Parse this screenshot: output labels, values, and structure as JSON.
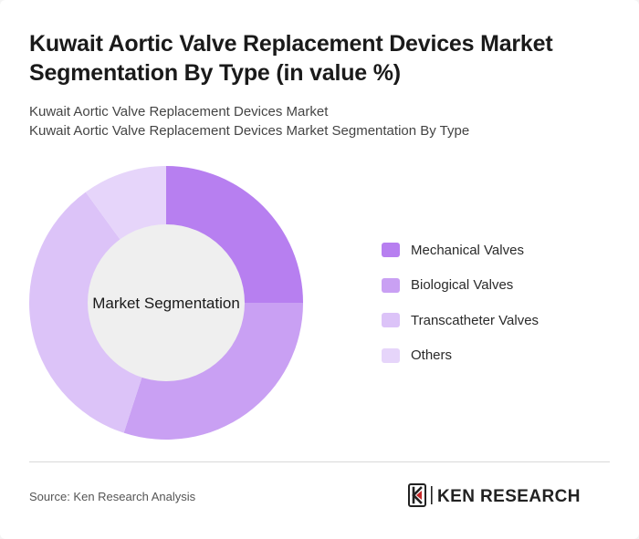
{
  "header": {
    "title": "Kuwait Aortic Valve Replacement Devices Market Segmentation By Type (in value %)",
    "subtitle_line1": "Kuwait Aortic Valve Replacement Devices Market",
    "subtitle_line2": "Kuwait Aortic Valve Replacement Devices Market Segmentation By Type"
  },
  "chart_data": {
    "type": "pie",
    "variant": "donut",
    "center_label": "Market Segmentation",
    "categories": [
      "Mechanical Valves",
      "Biological Valves",
      "Transcatheter Valves",
      "Others"
    ],
    "values": [
      25,
      30,
      35,
      10
    ],
    "colors": [
      "#b77ff0",
      "#c9a0f3",
      "#dcc3f8",
      "#e6d5fa"
    ],
    "legend_position": "right"
  },
  "footer": {
    "source": "Source: Ken Research Analysis",
    "logo_text": "KEN RESEARCH"
  }
}
